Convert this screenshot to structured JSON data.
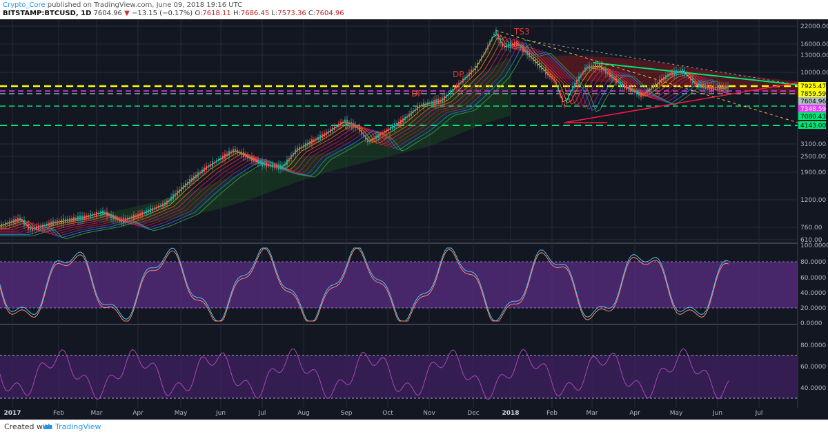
{
  "header": {
    "username": "Crypto_Core",
    "published_text": "published on TradingView.com, June 09, 2018 19:16 UTC",
    "symbol": "BITSTAMP:BTCUSD, 1D",
    "last": "7604.96",
    "change_arrow": "▼",
    "change": "−13.15 (−0.17%)",
    "o_label": "O:",
    "o_value": "7618.11",
    "h_label": "H:",
    "h_value": "7686.45",
    "l_label": "L:",
    "l_value": "7573.36",
    "c_label": "C:",
    "c_value": "7604.96"
  },
  "footer": {
    "created_with": "Created with",
    "brand": "TradingView"
  },
  "price_axis": [
    "22000.00",
    "16000.00",
    "13000.00",
    "10000.00",
    "3100.00",
    "2500.00",
    "1900.00",
    "1200.00",
    "760.00",
    "610.00"
  ],
  "price_badges": [
    {
      "text": "7925.47",
      "bg": "#ffff00",
      "fg": "#000000"
    },
    {
      "text": "7859.59",
      "bg": "#ffff00",
      "fg": "#000000"
    },
    {
      "text": "7604.96",
      "bg": "#b0bec5",
      "fg": "#000000"
    },
    {
      "text": "7348.59",
      "bg": "#e040fb",
      "fg": "#ffffff"
    },
    {
      "text": "7080.43",
      "bg": "#00e676",
      "fg": "#000000"
    },
    {
      "text": "4143.00",
      "bg": "#00e676",
      "fg": "#000000"
    }
  ],
  "stoch_axis": [
    "100.0000",
    "80.0000",
    "60.0000",
    "40.0000",
    "20.0000",
    "0.0000"
  ],
  "rsi_axis": [
    "80.0000",
    "60.0000",
    "40.0000"
  ],
  "time_axis": [
    "2017",
    "Feb",
    "Mar",
    "Apr",
    "May",
    "Jun",
    "Jul",
    "Aug",
    "Sep",
    "Oct",
    "Nov",
    "Dec",
    "2018",
    "Feb",
    "Mar",
    "Apr",
    "May",
    "Jun",
    "Jul"
  ],
  "annotations": [
    "DP",
    "TS1",
    "DP",
    "DP",
    "TS3"
  ],
  "colors": {
    "background": "#131722",
    "grid": "#262b38",
    "stoch_band": "#5b2c83",
    "rsi_band": "#3d1f5c",
    "yellow_line": "#ffff00",
    "green_line": "#00e676",
    "annotation": "#e53935",
    "candle_up": "#26a69a",
    "candle_down": "#ef5350"
  }
}
